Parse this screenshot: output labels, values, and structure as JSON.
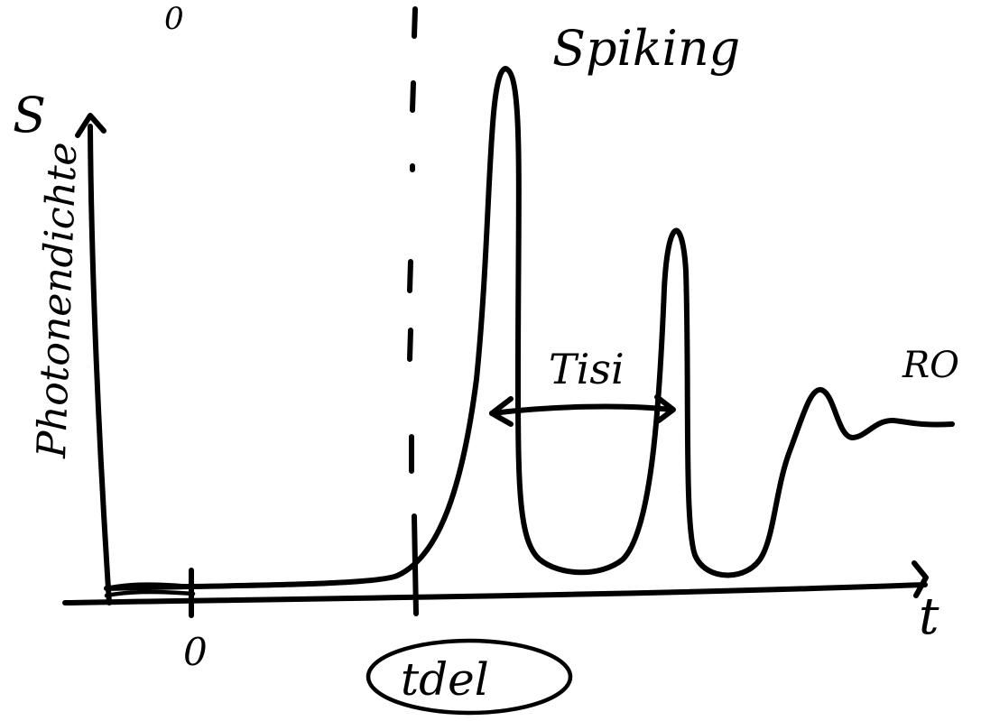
{
  "diagram": {
    "title": "Spiking",
    "y_axis_label": "Photonendichte",
    "x_axis_label": "t",
    "y_axis_symbol": "S",
    "top_marker": "0",
    "origin_label": "0",
    "delay_label": "tdel",
    "interval_label": "Tisi",
    "tail_label": "RO",
    "ink_color": "#000000",
    "background_color": "#ffffff"
  }
}
